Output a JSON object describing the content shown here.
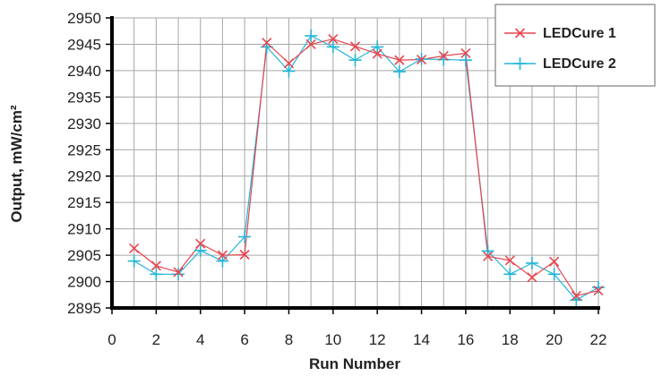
{
  "chart_data": {
    "type": "line",
    "xlabel": "Run Number",
    "ylabel": "Output, mW/cm²",
    "xlim": [
      0,
      22
    ],
    "ylim": [
      2895,
      2950
    ],
    "x_ticks": [
      0,
      2,
      4,
      6,
      8,
      10,
      12,
      14,
      16,
      18,
      20,
      22
    ],
    "y_ticks": [
      2895,
      2900,
      2905,
      2910,
      2915,
      2920,
      2925,
      2930,
      2935,
      2940,
      2945,
      2950
    ],
    "grid": true,
    "legend_position": "top-right",
    "x": [
      1,
      2,
      3,
      4,
      5,
      6,
      7,
      8,
      9,
      10,
      11,
      12,
      13,
      14,
      15,
      16,
      17,
      18,
      19,
      20,
      21,
      22
    ],
    "series": [
      {
        "name": "LEDCure 1",
        "color": "#e8454f",
        "marker": "x",
        "values": [
          2906.3,
          2903.0,
          2901.8,
          2907.2,
          2905.0,
          2905.1,
          2945.3,
          2941.4,
          2945.0,
          2946.0,
          2944.6,
          2943.2,
          2942.0,
          2942.1,
          2942.8,
          2943.3,
          2904.8,
          2904.0,
          2900.8,
          2903.8,
          2897.3,
          2898.3
        ]
      },
      {
        "name": "LEDCure 2",
        "color": "#22b5d6",
        "marker": "+",
        "values": [
          2903.9,
          2901.4,
          2901.4,
          2905.9,
          2903.9,
          2908.5,
          2944.5,
          2939.9,
          2946.6,
          2944.5,
          2942.0,
          2944.5,
          2939.8,
          2942.2,
          2942.1,
          2942.0,
          2905.8,
          2901.4,
          2903.5,
          2901.4,
          2896.5,
          2898.9
        ]
      }
    ]
  }
}
